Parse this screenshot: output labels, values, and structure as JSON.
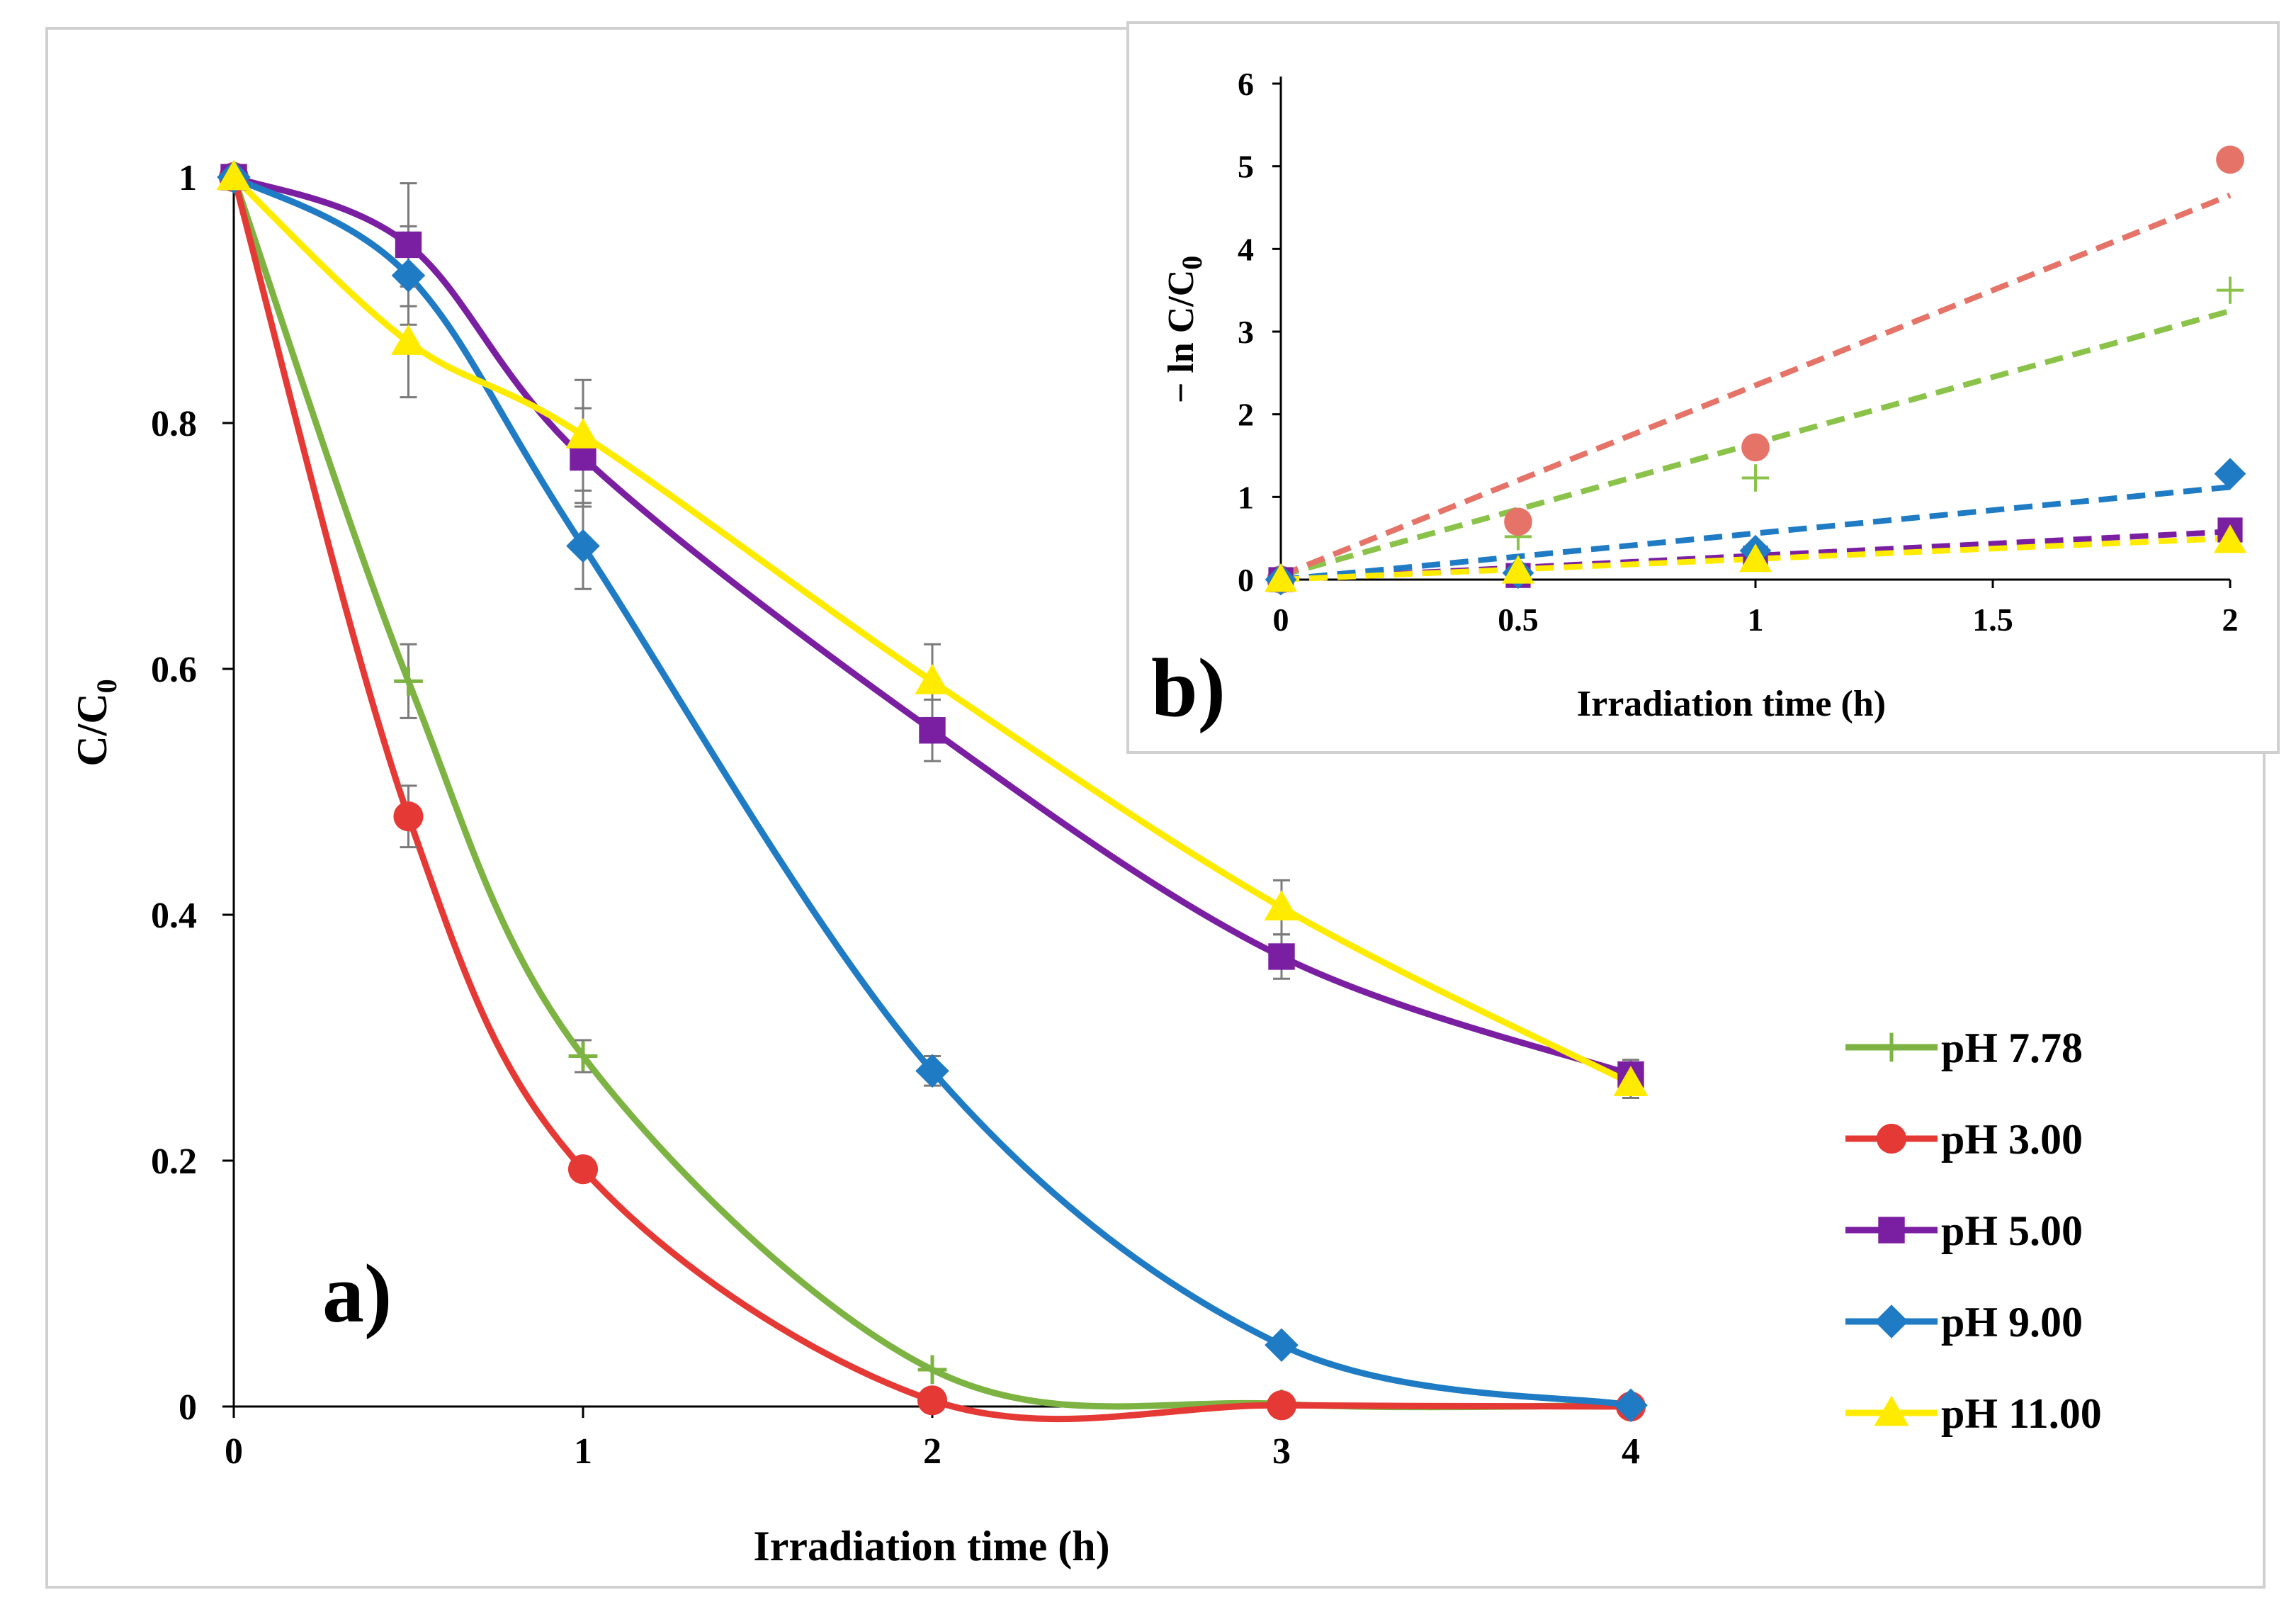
{
  "chart_data": [
    {
      "type": "line",
      "panel_label": "a)",
      "xlabel": "Irradiation  time (h)",
      "ylabel_main": "C/C",
      "ylabel_sub": "0",
      "xlim": [
        0,
        4
      ],
      "ylim": [
        0,
        1
      ],
      "xticks": [
        "0",
        "1",
        "2",
        "3",
        "4"
      ],
      "yticks": [
        "0",
        "0.2",
        "0.4",
        "0.6",
        "0.8",
        "1"
      ],
      "legend_position": "right",
      "x": [
        0,
        0.5,
        1,
        2,
        3,
        4
      ],
      "series": [
        {
          "name": "pH 7.78",
          "color": "#7cb342",
          "marker": "plus",
          "values": [
            1,
            0.59,
            0.285,
            0.03,
            0.002,
            0.001
          ],
          "errors": [
            0,
            0.03,
            0.013,
            0,
            0,
            0
          ]
        },
        {
          "name": "pH 3.00",
          "color": "#e53935",
          "marker": "circle",
          "values": [
            1,
            0.48,
            0.193,
            0.005,
            0.001,
            0.0
          ],
          "errors": [
            0,
            0.025,
            0.008,
            0,
            0,
            0
          ]
        },
        {
          "name": "pH 5.00",
          "color": "#7b1fa2",
          "marker": "square",
          "values": [
            1,
            0.945,
            0.772,
            0.55,
            0.366,
            0.27
          ],
          "errors": [
            0,
            0.05,
            0.04,
            0.025,
            0.018,
            0.012
          ]
        },
        {
          "name": "pH 9.00",
          "color": "#1e7bc4",
          "marker": "diamond",
          "values": [
            1,
            0.92,
            0.7,
            0.273,
            0.05,
            0.001
          ],
          "errors": [
            0,
            0.04,
            0.035,
            0.012,
            0,
            0
          ]
        },
        {
          "name": "pH 11.00",
          "color": "#ffeb00",
          "marker": "triangle",
          "values": [
            1,
            0.866,
            0.79,
            0.59,
            0.406,
            0.263
          ],
          "errors": [
            0,
            0.045,
            0.045,
            0.03,
            0.022,
            0.012
          ]
        }
      ]
    },
    {
      "type": "scatter",
      "panel_label": "b)",
      "xlabel": "Irradiation time (h)",
      "ylabel_main": "− ln C/C",
      "ylabel_sub": "0",
      "xlim": [
        0,
        2
      ],
      "ylim": [
        0,
        6
      ],
      "xticks": [
        "0",
        "0.5",
        "1",
        "1.5",
        "2"
      ],
      "yticks": [
        "0",
        "1",
        "2",
        "3",
        "4",
        "5",
        "6"
      ],
      "x": [
        0,
        0.5,
        1,
        2
      ],
      "series": [
        {
          "name": "pH 7.78",
          "color": "#8bc34a",
          "marker": "plus",
          "values": [
            0,
            0.52,
            1.23,
            3.5
          ],
          "fit": [
            0.05,
            3.25
          ]
        },
        {
          "name": "pH 3.00",
          "color": "#e57368",
          "marker": "circle",
          "values": [
            0,
            0.7,
            1.6,
            5.08
          ],
          "fit": [
            0.05,
            4.65
          ]
        },
        {
          "name": "pH 5.00",
          "color": "#7b1fa2",
          "marker": "square",
          "values": [
            0,
            0.05,
            0.26,
            0.6
          ],
          "fit": [
            0.0,
            0.58
          ]
        },
        {
          "name": "pH 9.00",
          "color": "#1e7bc4",
          "marker": "diamond",
          "values": [
            0,
            0.08,
            0.35,
            1.28
          ],
          "fit": [
            0.0,
            1.12
          ]
        },
        {
          "name": "pH 11.00",
          "color": "#ffeb00",
          "marker": "triangle",
          "values": [
            0,
            0.1,
            0.24,
            0.47
          ],
          "fit": [
            0.0,
            0.5
          ]
        }
      ]
    }
  ]
}
